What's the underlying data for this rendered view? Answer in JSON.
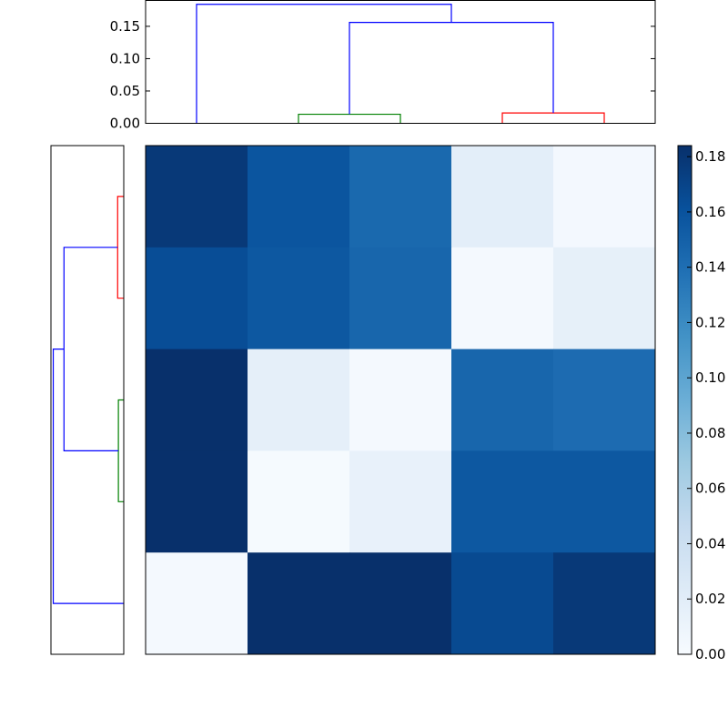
{
  "chart_data": [
    {
      "type": "dendrogram",
      "orientation": "top",
      "ylim": [
        0,
        0.19
      ],
      "yticks": [
        "0.00",
        "0.05",
        "0.10",
        "0.15"
      ],
      "ytick_values": [
        0,
        0.05,
        0.1,
        0.15
      ],
      "leaves": 5,
      "links": [
        {
          "left": 1,
          "right": 2,
          "height": 0.014,
          "color": "#008000"
        },
        {
          "left": 3,
          "right": 4,
          "height": 0.016,
          "color": "#ff0000"
        },
        {
          "left": 1.5,
          "right": 3.5,
          "height": 0.156,
          "left_height": 0.014,
          "right_height": 0.016,
          "color": "#0000ff"
        },
        {
          "left": 0,
          "right": 2.5,
          "height": 0.184,
          "left_height": 0,
          "right_height": 0.156,
          "color": "#0000ff"
        }
      ]
    },
    {
      "type": "dendrogram",
      "orientation": "left",
      "leaves": 5,
      "links": [
        {
          "left": 0,
          "right": 1,
          "height": 0.016,
          "color": "#ff0000"
        },
        {
          "left": 2,
          "right": 3,
          "height": 0.014,
          "color": "#008000"
        },
        {
          "left": 0.5,
          "right": 2.5,
          "height": 0.156,
          "left_height": 0.016,
          "right_height": 0.014,
          "color": "#0000ff"
        },
        {
          "left": 1.5,
          "right": 4,
          "height": 0.184,
          "left_height": 0.156,
          "right_height": 0,
          "color": "#0000ff"
        }
      ]
    },
    {
      "type": "heatmap",
      "colormap": "Blues",
      "vmin": 0,
      "vmax": 0.184,
      "rows": 5,
      "cols": 5,
      "values": [
        [
          0.178,
          0.158,
          0.144,
          0.018,
          0.004
        ],
        [
          0.164,
          0.156,
          0.146,
          0.003,
          0.016
        ],
        [
          0.184,
          0.017,
          0.003,
          0.146,
          0.142
        ],
        [
          0.184,
          0.002,
          0.014,
          0.156,
          0.156
        ],
        [
          0.003,
          0.184,
          0.184,
          0.166,
          0.178
        ]
      ]
    },
    {
      "type": "colorbar",
      "colormap": "Blues",
      "range": [
        0,
        0.184
      ],
      "ticks": [
        "0.00",
        "0.02",
        "0.04",
        "0.06",
        "0.08",
        "0.10",
        "0.12",
        "0.14",
        "0.16",
        "0.18"
      ],
      "tick_values": [
        0,
        0.02,
        0.04,
        0.06,
        0.08,
        0.1,
        0.12,
        0.14,
        0.16,
        0.18
      ]
    }
  ]
}
